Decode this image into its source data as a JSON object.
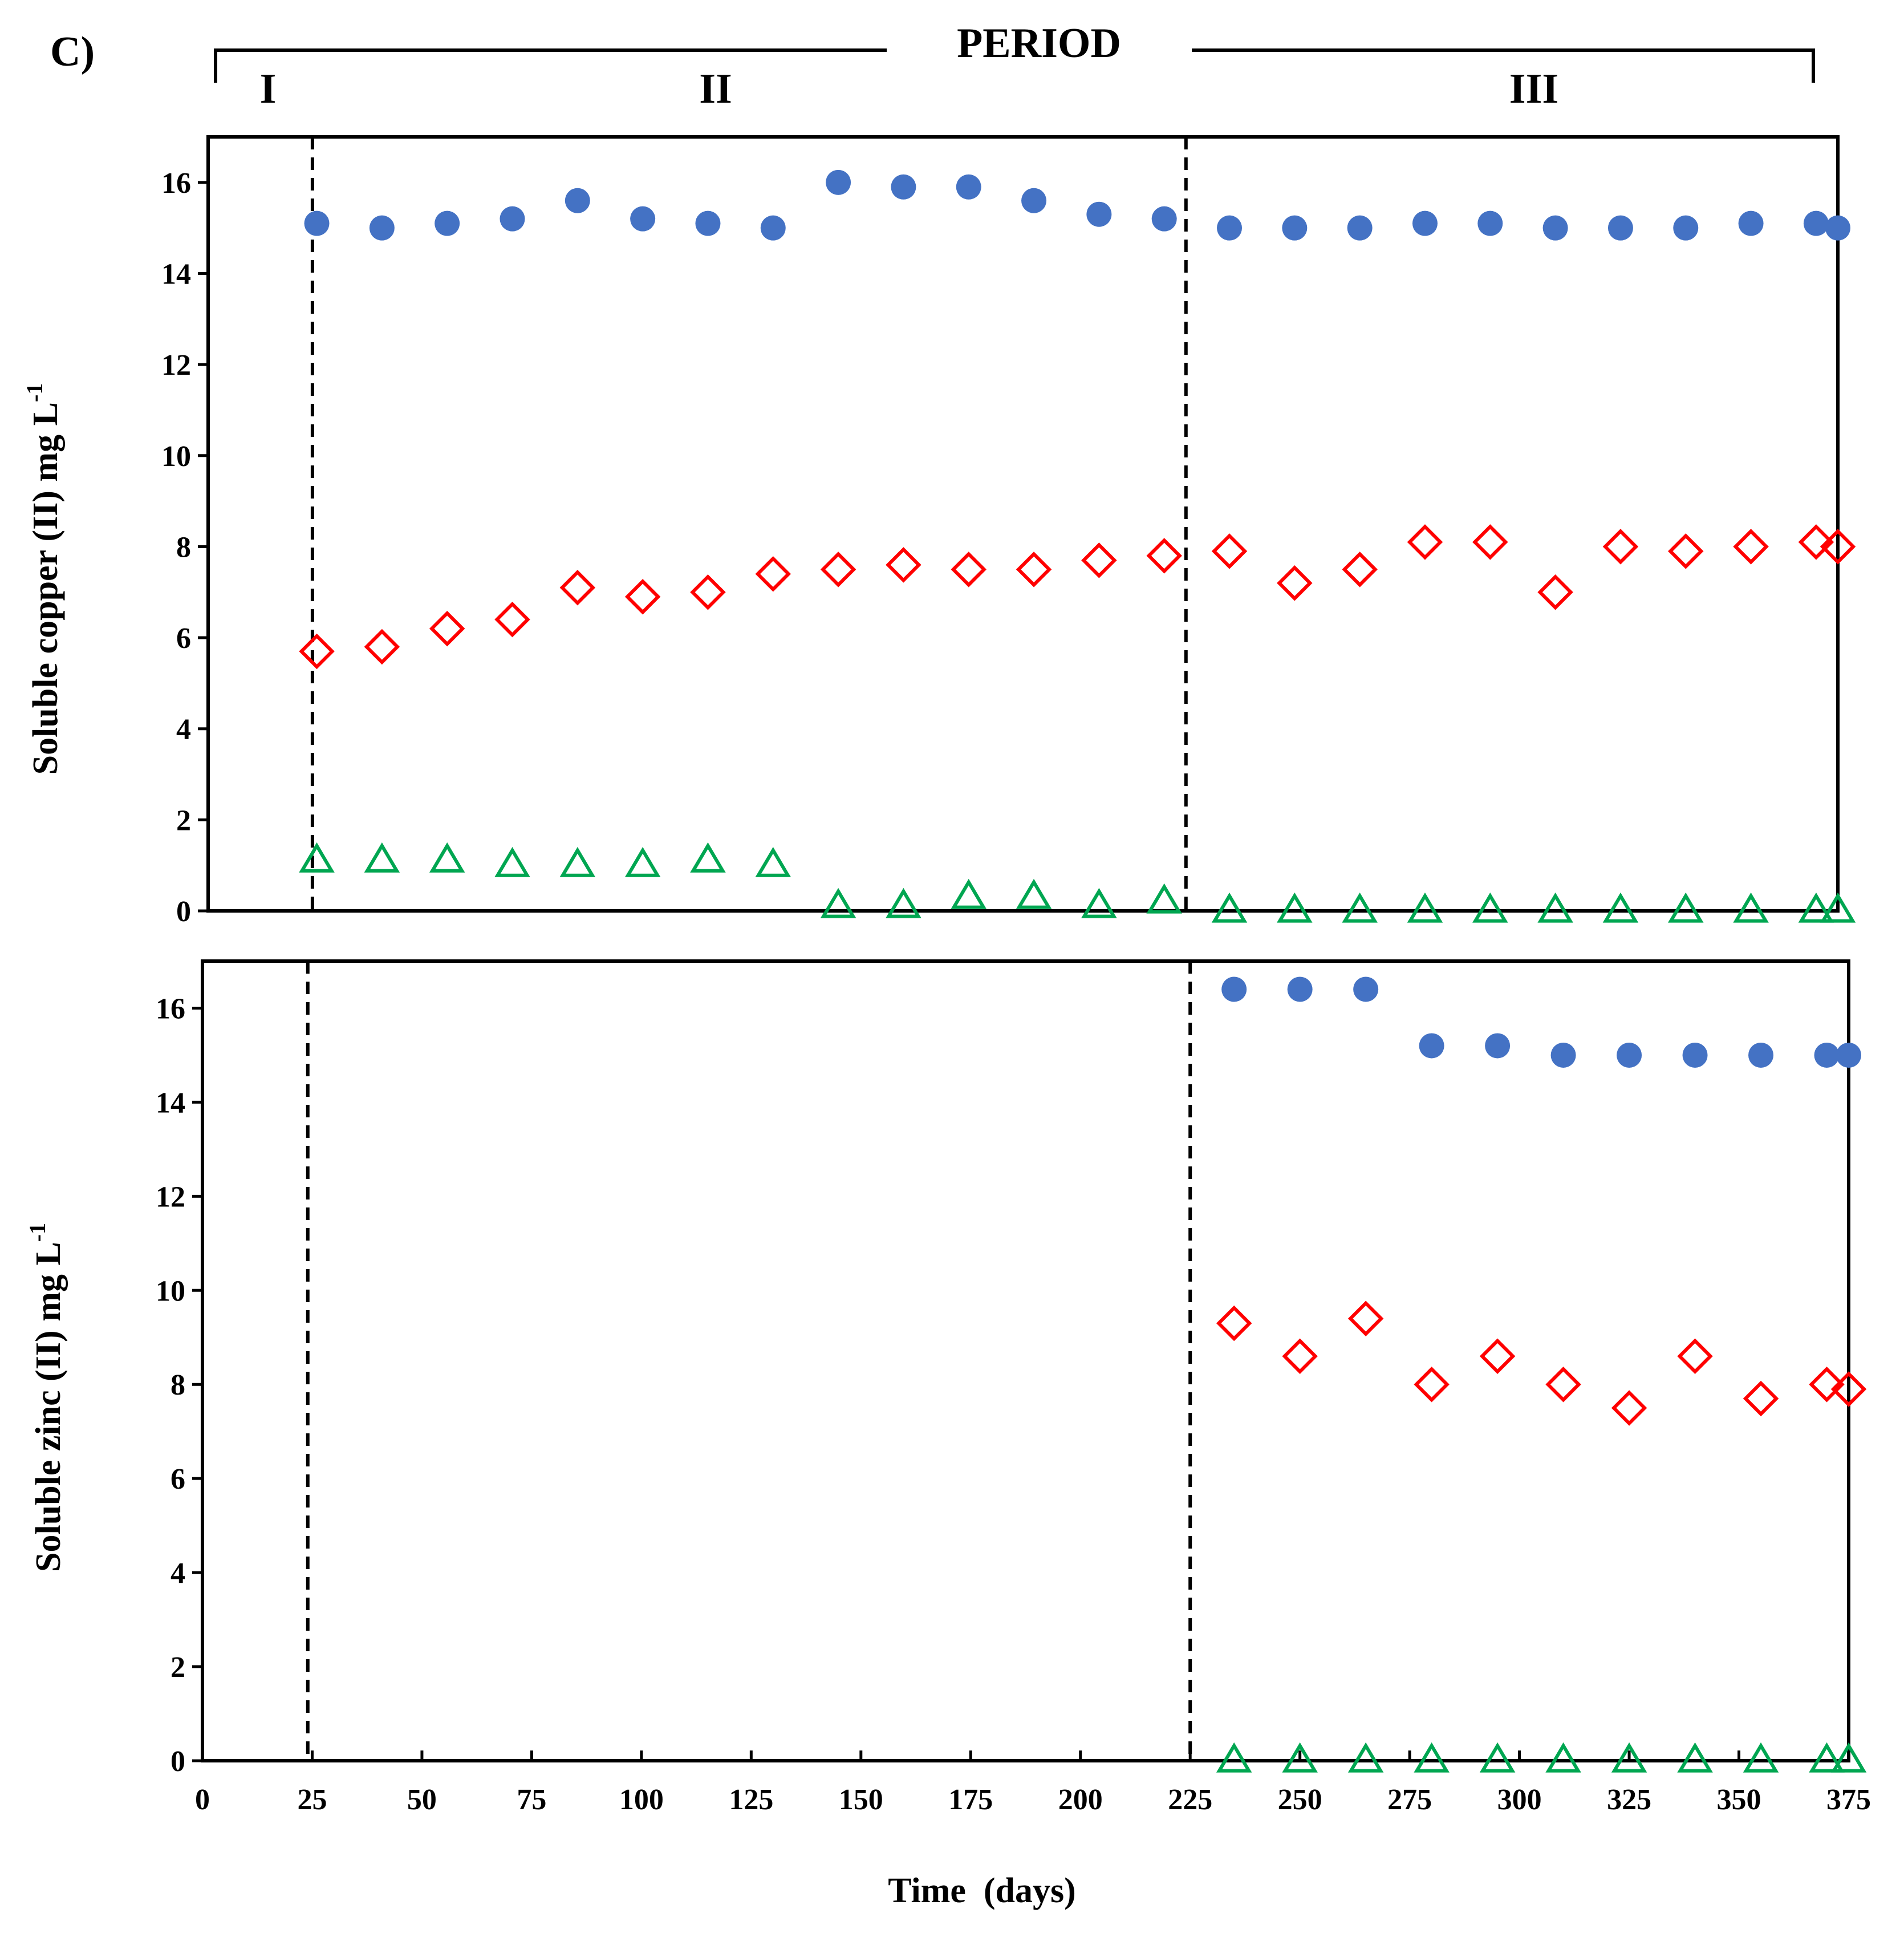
{
  "figure": {
    "panel_label": "C)",
    "period_title": "PERIOD",
    "periods": [
      "I",
      "II",
      "III"
    ],
    "xlabel": "Time  (days)"
  },
  "chart_data": [
    {
      "type": "scatter",
      "ylabel": "Soluble copper (II) mg L",
      "ylabel_superscript": "-1",
      "ylim": [
        0,
        17
      ],
      "xlim": [
        0,
        375
      ],
      "yticks": [
        "0",
        "2",
        "4",
        "6",
        "8",
        "10",
        "12",
        "14",
        "16"
      ],
      "period_dividers_x": [
        24,
        225
      ],
      "series": [
        {
          "marker": "circle-filled",
          "color": "#4472C4",
          "x": [
            25,
            40,
            55,
            70,
            85,
            100,
            115,
            130,
            145,
            160,
            175,
            190,
            205,
            220,
            235,
            250,
            265,
            280,
            295,
            310,
            325,
            340,
            355,
            370,
            375
          ],
          "y": [
            15.1,
            15.0,
            15.1,
            15.2,
            15.6,
            15.2,
            15.1,
            15.0,
            16.0,
            15.9,
            15.9,
            15.6,
            15.3,
            15.2,
            15.0,
            15.0,
            15.0,
            15.1,
            15.1,
            15.0,
            15.0,
            15.0,
            15.1,
            15.1,
            15.0
          ]
        },
        {
          "marker": "diamond-open",
          "color": "#FF0000",
          "x": [
            25,
            40,
            55,
            70,
            85,
            100,
            115,
            130,
            145,
            160,
            175,
            190,
            205,
            220,
            235,
            250,
            265,
            280,
            295,
            310,
            325,
            340,
            355,
            370,
            375
          ],
          "y": [
            5.7,
            5.8,
            6.2,
            6.4,
            7.1,
            6.9,
            7.0,
            7.4,
            7.5,
            7.6,
            7.5,
            7.5,
            7.7,
            7.8,
            7.9,
            7.2,
            7.5,
            8.1,
            8.1,
            7.0,
            8.0,
            7.9,
            8.0,
            8.1,
            8.0
          ]
        },
        {
          "marker": "triangle-open",
          "color": "#00A651",
          "x": [
            25,
            40,
            55,
            70,
            85,
            100,
            115,
            130,
            145,
            160,
            175,
            190,
            205,
            220,
            235,
            250,
            265,
            280,
            295,
            310,
            325,
            340,
            355,
            370,
            375
          ],
          "y": [
            1.1,
            1.1,
            1.1,
            1.0,
            1.0,
            1.0,
            1.1,
            1.0,
            0.1,
            0.1,
            0.3,
            0.3,
            0.1,
            0.2,
            0,
            0,
            0,
            0,
            0,
            0,
            0,
            0,
            0,
            0,
            0
          ]
        }
      ]
    },
    {
      "type": "scatter",
      "ylabel": "Soluble zinc (II) mg L",
      "ylabel_superscript": "-1",
      "ylim": [
        0,
        17
      ],
      "xlim": [
        0,
        375
      ],
      "xticks": [
        "0",
        "25",
        "50",
        "75",
        "100",
        "125",
        "150",
        "175",
        "200",
        "225",
        "250",
        "275",
        "300",
        "325",
        "350",
        "375"
      ],
      "yticks": [
        "0",
        "2",
        "4",
        "6",
        "8",
        "10",
        "12",
        "14",
        "16"
      ],
      "period_dividers_x": [
        24,
        225
      ],
      "series": [
        {
          "marker": "circle-filled",
          "color": "#4472C4",
          "x": [
            235,
            250,
            265,
            280,
            295,
            310,
            325,
            340,
            355,
            370,
            375
          ],
          "y": [
            16.4,
            16.4,
            16.4,
            15.2,
            15.2,
            15.0,
            15.0,
            15.0,
            15.0,
            15.0,
            15.0
          ]
        },
        {
          "marker": "diamond-open",
          "color": "#FF0000",
          "x": [
            235,
            250,
            265,
            280,
            295,
            310,
            325,
            340,
            355,
            370,
            375
          ],
          "y": [
            9.3,
            8.6,
            9.4,
            8.0,
            8.6,
            8.0,
            7.5,
            8.6,
            7.7,
            8.0,
            7.9
          ]
        },
        {
          "marker": "triangle-open",
          "color": "#00A651",
          "x": [
            235,
            250,
            265,
            280,
            295,
            310,
            325,
            340,
            355,
            370,
            375
          ],
          "y": [
            0,
            0,
            0,
            0,
            0,
            0,
            0,
            0,
            0,
            0,
            0
          ]
        }
      ]
    }
  ]
}
